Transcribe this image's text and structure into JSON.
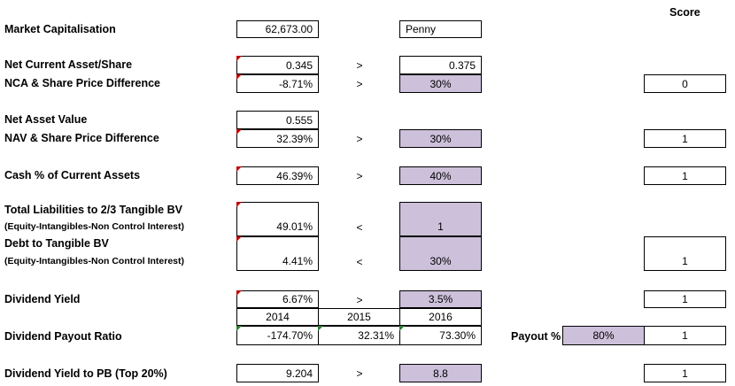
{
  "score_header": "Score",
  "rows": {
    "market_cap": {
      "label": "Market Capitalisation",
      "value": "62,673.00",
      "threshold": "Penny"
    },
    "nca_share": {
      "label": "Net Current Asset/Share",
      "value": "0.345",
      "op": ">",
      "threshold": "0.375"
    },
    "nca_diff": {
      "label": "NCA & Share Price Difference",
      "value": "-8.71%",
      "op": ">",
      "threshold": "30%",
      "score": "0"
    },
    "nav": {
      "label": "Net Asset Value",
      "value": "0.555"
    },
    "nav_diff": {
      "label": "NAV & Share Price Difference",
      "value": "32.39%",
      "op": ">",
      "threshold": "30%",
      "score": "1"
    },
    "cash_pct": {
      "label": "Cash % of Current Assets",
      "value": "46.39%",
      "op": ">",
      "threshold": "40%",
      "score": "1"
    },
    "total_liab": {
      "label": "Total Liabilities to 2/3 Tangible BV",
      "sublabel": "(Equity-Intangibles-Non Control Interest)",
      "value": "49.01%",
      "op": "<",
      "threshold": "1"
    },
    "debt_tbv": {
      "label": "Debt to Tangible BV",
      "sublabel": "(Equity-Intangibles-Non Control Interest)",
      "value": "4.41%",
      "op": "<",
      "threshold": "30%",
      "score": "1"
    },
    "div_yield": {
      "label": "Dividend Yield",
      "value": "6.67%",
      "op": ">",
      "threshold": "3.5%",
      "score": "1"
    },
    "years": [
      "2014",
      "2015",
      "2016"
    ],
    "payout": {
      "label": "Dividend Payout Ratio",
      "values": [
        "-174.70%",
        "32.31%",
        "73.30%"
      ],
      "payout_label": "Payout %",
      "payout_value": "80%",
      "score": "1"
    },
    "div_pb": {
      "label": "Dividend Yield to PB (Top 20%)",
      "value": "9.204",
      "op": ">",
      "threshold": "8.8",
      "score": "1"
    }
  }
}
